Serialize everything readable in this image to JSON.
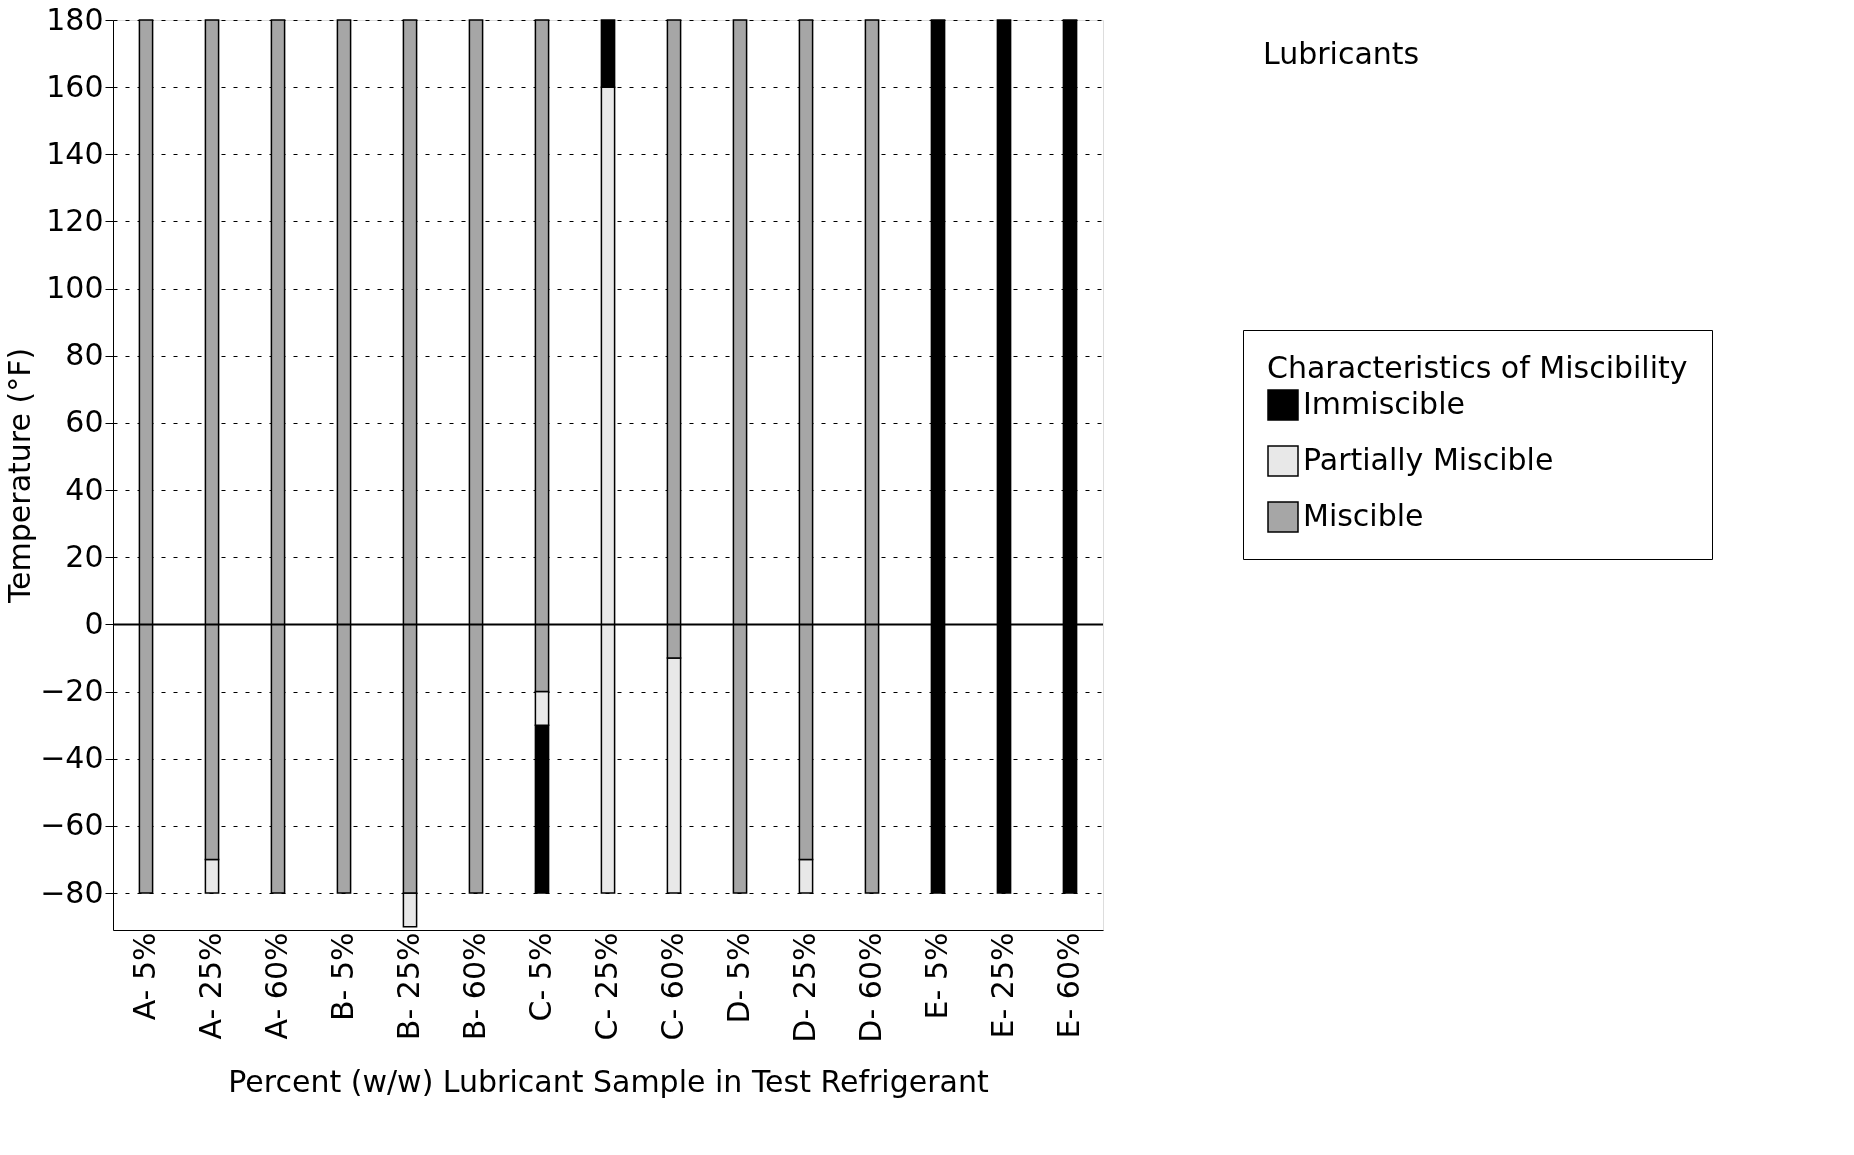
{
  "chart_data": {
    "type": "bar",
    "categories": [
      "A- 5%",
      "A- 25%",
      "A- 60%",
      "B- 5%",
      "B- 25%",
      "B- 60%",
      "C- 5%",
      "C- 25%",
      "C- 60%",
      "D- 5%",
      "D- 25%",
      "D- 60%",
      "E- 5%",
      "E- 25%",
      "E- 60%"
    ],
    "series": [
      {
        "name": "Immiscible",
        "color": "#000000",
        "base": [
          null,
          null,
          null,
          null,
          null,
          null,
          -80,
          null,
          null,
          null,
          null,
          null,
          -80,
          -80,
          -80
        ],
        "values": [
          null,
          null,
          null,
          null,
          null,
          null,
          50,
          null,
          null,
          null,
          null,
          null,
          260,
          260,
          260
        ]
      },
      {
        "name": "Partially Miscible",
        "color": "#e8e8e8",
        "base": [
          null,
          -80,
          null,
          null,
          -90,
          null,
          -30,
          -80,
          -80,
          null,
          -80,
          null,
          null,
          null,
          null
        ],
        "values": [
          null,
          10,
          null,
          null,
          10,
          null,
          10,
          240,
          70,
          null,
          10,
          null,
          null,
          null,
          null
        ]
      },
      {
        "name": "Miscible",
        "color": "#a6a6a6",
        "base": [
          -80,
          -70,
          -80,
          -80,
          -80,
          -80,
          -20,
          null,
          -10,
          -80,
          -70,
          -80,
          null,
          null,
          null
        ],
        "values": [
          260,
          250,
          260,
          260,
          260,
          260,
          200,
          null,
          190,
          260,
          250,
          260,
          null,
          null,
          null
        ]
      },
      {
        "color": "#000000",
        "base": [
          null,
          null,
          null,
          null,
          null,
          null,
          null,
          160,
          null,
          null,
          null,
          null,
          null,
          null,
          null
        ],
        "values": [
          null,
          null,
          null,
          null,
          null,
          null,
          null,
          20,
          null,
          null,
          null,
          null,
          null,
          null,
          null
        ]
      }
    ],
    "ylim": [
      -91,
      180
    ],
    "yticks": [
      -80,
      -60,
      -40,
      -20,
      0,
      20,
      40,
      60,
      80,
      100,
      120,
      140,
      160,
      180
    ],
    "ylabel": "Temperature (°F)",
    "xlabel": "Percent (w/w) Lubricant Sample in Test Refrigerant",
    "legend_title": "Characteristics of Miscibility",
    "legend": "right",
    "grid": "y",
    "ref_lines": [
      {
        "axis": "y",
        "value": 0
      }
    ],
    "annotations": [
      "Lubricants"
    ]
  }
}
